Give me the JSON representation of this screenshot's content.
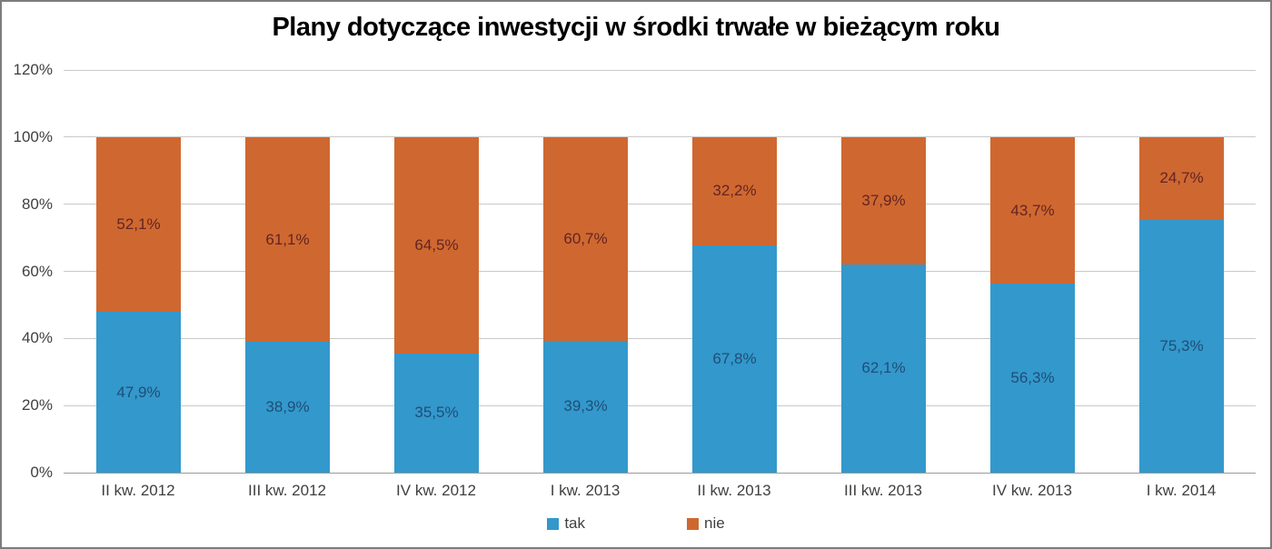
{
  "chart_data": {
    "type": "bar",
    "stacked": true,
    "title": "Plany dotyczące inwestycji w środki trwałe w bieżącym roku",
    "categories": [
      "II kw. 2012",
      "III kw. 2012",
      "IV kw. 2012",
      "I kw. 2013",
      "II kw. 2013",
      "III kw. 2013",
      "IV kw. 2013",
      "I kw. 2014"
    ],
    "series": [
      {
        "name": "tak",
        "color": "#3398CB",
        "label_color": "#1F4E79",
        "values": [
          47.9,
          38.9,
          35.5,
          39.3,
          67.8,
          62.1,
          56.3,
          75.3
        ],
        "labels": [
          "47,9%",
          "38,9%",
          "35,5%",
          "39,3%",
          "67,8%",
          "62,1%",
          "56,3%",
          "75,3%"
        ]
      },
      {
        "name": "nie",
        "color": "#CF6830",
        "label_color": "#632423",
        "values": [
          52.1,
          61.1,
          64.5,
          60.7,
          32.2,
          37.9,
          43.7,
          24.7
        ],
        "labels": [
          "52,1%",
          "61,1%",
          "64,5%",
          "60,7%",
          "32,2%",
          "37,9%",
          "43,7%",
          "24,7%"
        ]
      }
    ],
    "ylim": [
      0,
      120
    ],
    "ytick_step": 20,
    "ytick_labels": [
      "0%",
      "20%",
      "40%",
      "60%",
      "80%",
      "100%",
      "120%"
    ],
    "grid": true,
    "legend_position": "bottom"
  },
  "style": {
    "gridline_color": "#C9C9C9",
    "axis_line_color": "#9A9A9A",
    "tick_label_color": "#3F3F3F",
    "legend_text_color": "#3F3F3F",
    "frame_border_color": "#7D7D7D",
    "background_color": "#FFFFFF"
  }
}
